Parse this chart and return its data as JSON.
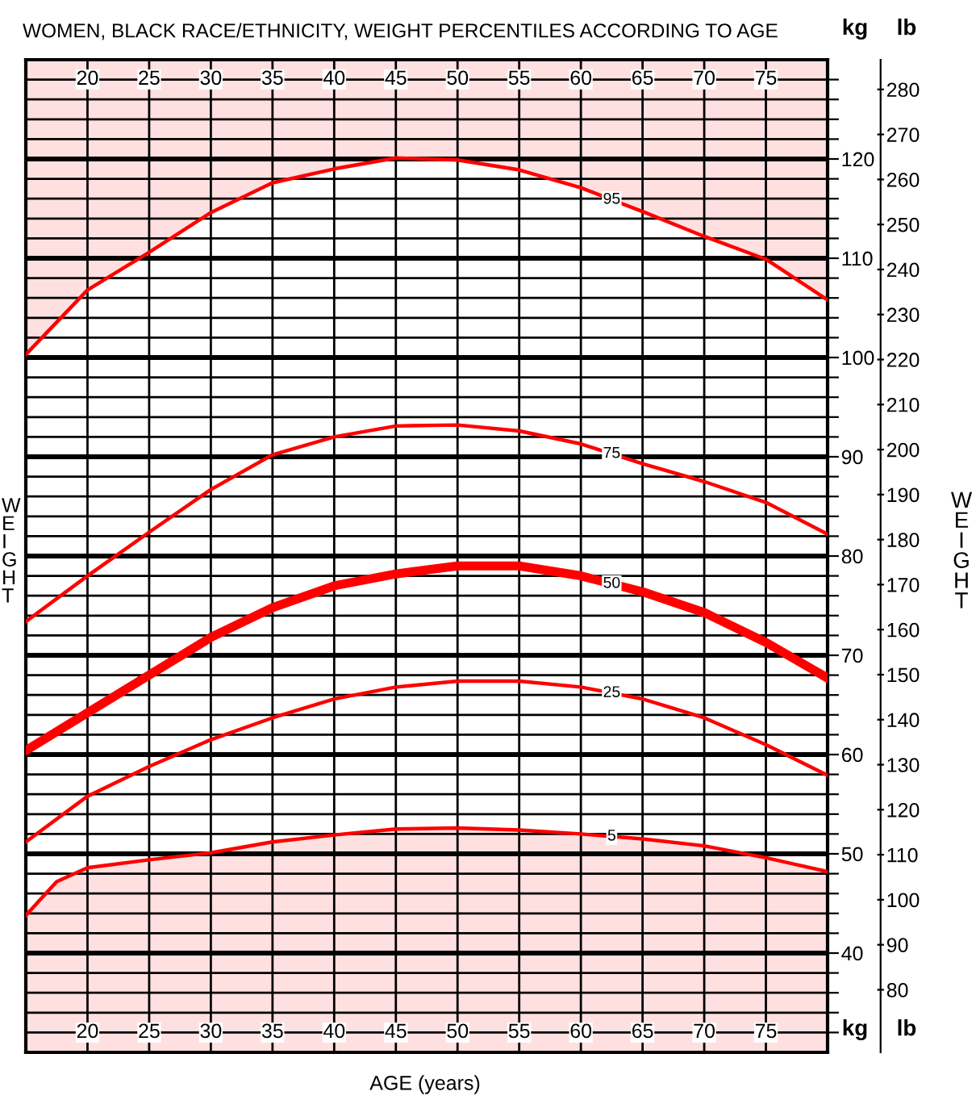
{
  "chart_data": {
    "type": "line",
    "title": "WOMEN, BLACK RACE/ETHNICITY, WEIGHT PERCENTILES ACCORDING TO AGE",
    "xlabel": "AGE (years)",
    "ylabel": "WEIGHT",
    "y2label": "WEIGHT",
    "annotations": [
      "kg",
      "lb",
      "kg",
      "lb"
    ],
    "x": [
      15,
      20,
      25,
      30,
      35,
      40,
      45,
      50,
      55,
      60,
      65,
      70,
      75,
      80
    ],
    "series": [
      {
        "name": "95",
        "color": "#ff0000",
        "values": [
          100.3,
          106.8,
          110.6,
          114.6,
          117.6,
          119.0,
          120.1,
          119.9,
          118.9,
          117.1,
          114.7,
          112.2,
          109.9,
          105.8
        ]
      },
      {
        "name": "75",
        "color": "#ff0000",
        "values": [
          73.4,
          78.0,
          82.4,
          86.7,
          90.2,
          92.0,
          93.1,
          93.2,
          92.6,
          91.3,
          89.3,
          87.5,
          85.4,
          82.2
        ]
      },
      {
        "name": "50",
        "color": "#ff0000",
        "values": [
          60.4,
          64.2,
          68.0,
          71.8,
          74.8,
          77.0,
          78.2,
          79.0,
          79.0,
          78.0,
          76.4,
          74.3,
          71.3,
          67.7
        ]
      },
      {
        "name": "25",
        "color": "#ff0000",
        "values": [
          51.2,
          55.8,
          58.8,
          61.5,
          63.7,
          65.6,
          66.8,
          67.4,
          67.4,
          66.8,
          65.6,
          63.7,
          61.0,
          57.9
        ]
      },
      {
        "name": "5",
        "color": "#ff0000",
        "x": [
          15,
          17.5,
          20,
          25,
          30,
          35,
          40,
          45,
          50,
          55,
          60,
          65,
          70,
          75,
          80
        ],
        "values": [
          43.8,
          47.2,
          48.6,
          49.4,
          50.1,
          51.2,
          51.9,
          52.5,
          52.6,
          52.4,
          52.0,
          51.5,
          50.8,
          49.6,
          48.2
        ]
      }
    ],
    "xlim": [
      15,
      80
    ],
    "xticks": [
      20,
      25,
      30,
      35,
      40,
      45,
      50,
      55,
      60,
      65,
      70,
      75
    ],
    "x2lim": [
      15,
      80
    ],
    "x2ticks": [
      20,
      25,
      30,
      35,
      40,
      45,
      50,
      55,
      60,
      65,
      70,
      75
    ],
    "ylim": [
      30,
      130
    ],
    "yticks": [
      {
        "value": 32,
        "label": null
      },
      {
        "value": 34,
        "label": null
      },
      {
        "value": 36,
        "label": null
      },
      {
        "value": 38,
        "label": null
      },
      40,
      {
        "value": 42,
        "label": null
      },
      {
        "value": 44,
        "label": null
      },
      {
        "value": 46,
        "label": null
      },
      {
        "value": 48,
        "label": null
      },
      50,
      {
        "value": 52,
        "label": null
      },
      {
        "value": 54,
        "label": null
      },
      {
        "value": 56,
        "label": null
      },
      {
        "value": 58,
        "label": null
      },
      60,
      {
        "value": 62,
        "label": null
      },
      {
        "value": 64,
        "label": null
      },
      {
        "value": 66,
        "label": null
      },
      {
        "value": 68,
        "label": null
      },
      70,
      {
        "value": 72,
        "label": null
      },
      {
        "value": 74,
        "label": null
      },
      {
        "value": 76,
        "label": null
      },
      {
        "value": 78,
        "label": null
      },
      80,
      {
        "value": 82,
        "label": null
      },
      {
        "value": 84,
        "label": null
      },
      {
        "value": 86,
        "label": null
      },
      {
        "value": 88,
        "label": null
      },
      90,
      {
        "value": 92,
        "label": null
      },
      {
        "value": 94,
        "label": null
      },
      {
        "value": 96,
        "label": null
      },
      {
        "value": 98,
        "label": null
      },
      100,
      {
        "value": 102,
        "label": null
      },
      {
        "value": 104,
        "label": null
      },
      {
        "value": 106,
        "label": null
      },
      {
        "value": 108,
        "label": null
      },
      110,
      {
        "value": 112,
        "label": null
      },
      {
        "value": 114,
        "label": null
      },
      {
        "value": 116,
        "label": null
      },
      {
        "value": 118,
        "label": null
      },
      120,
      {
        "value": 122,
        "label": null
      },
      {
        "value": 124,
        "label": null
      },
      {
        "value": 126,
        "label": null
      },
      {
        "value": 128,
        "label": null
      }
    ],
    "y2lim": [
      66.1,
      286.6
    ],
    "y2ticks": [
      80,
      90,
      100,
      110,
      120,
      130,
      140,
      150,
      160,
      170,
      180,
      190,
      200,
      210,
      220,
      230,
      240,
      250,
      260,
      270,
      280
    ],
    "grid": true,
    "legend": false,
    "marker": "none",
    "line_style": "solid"
  }
}
